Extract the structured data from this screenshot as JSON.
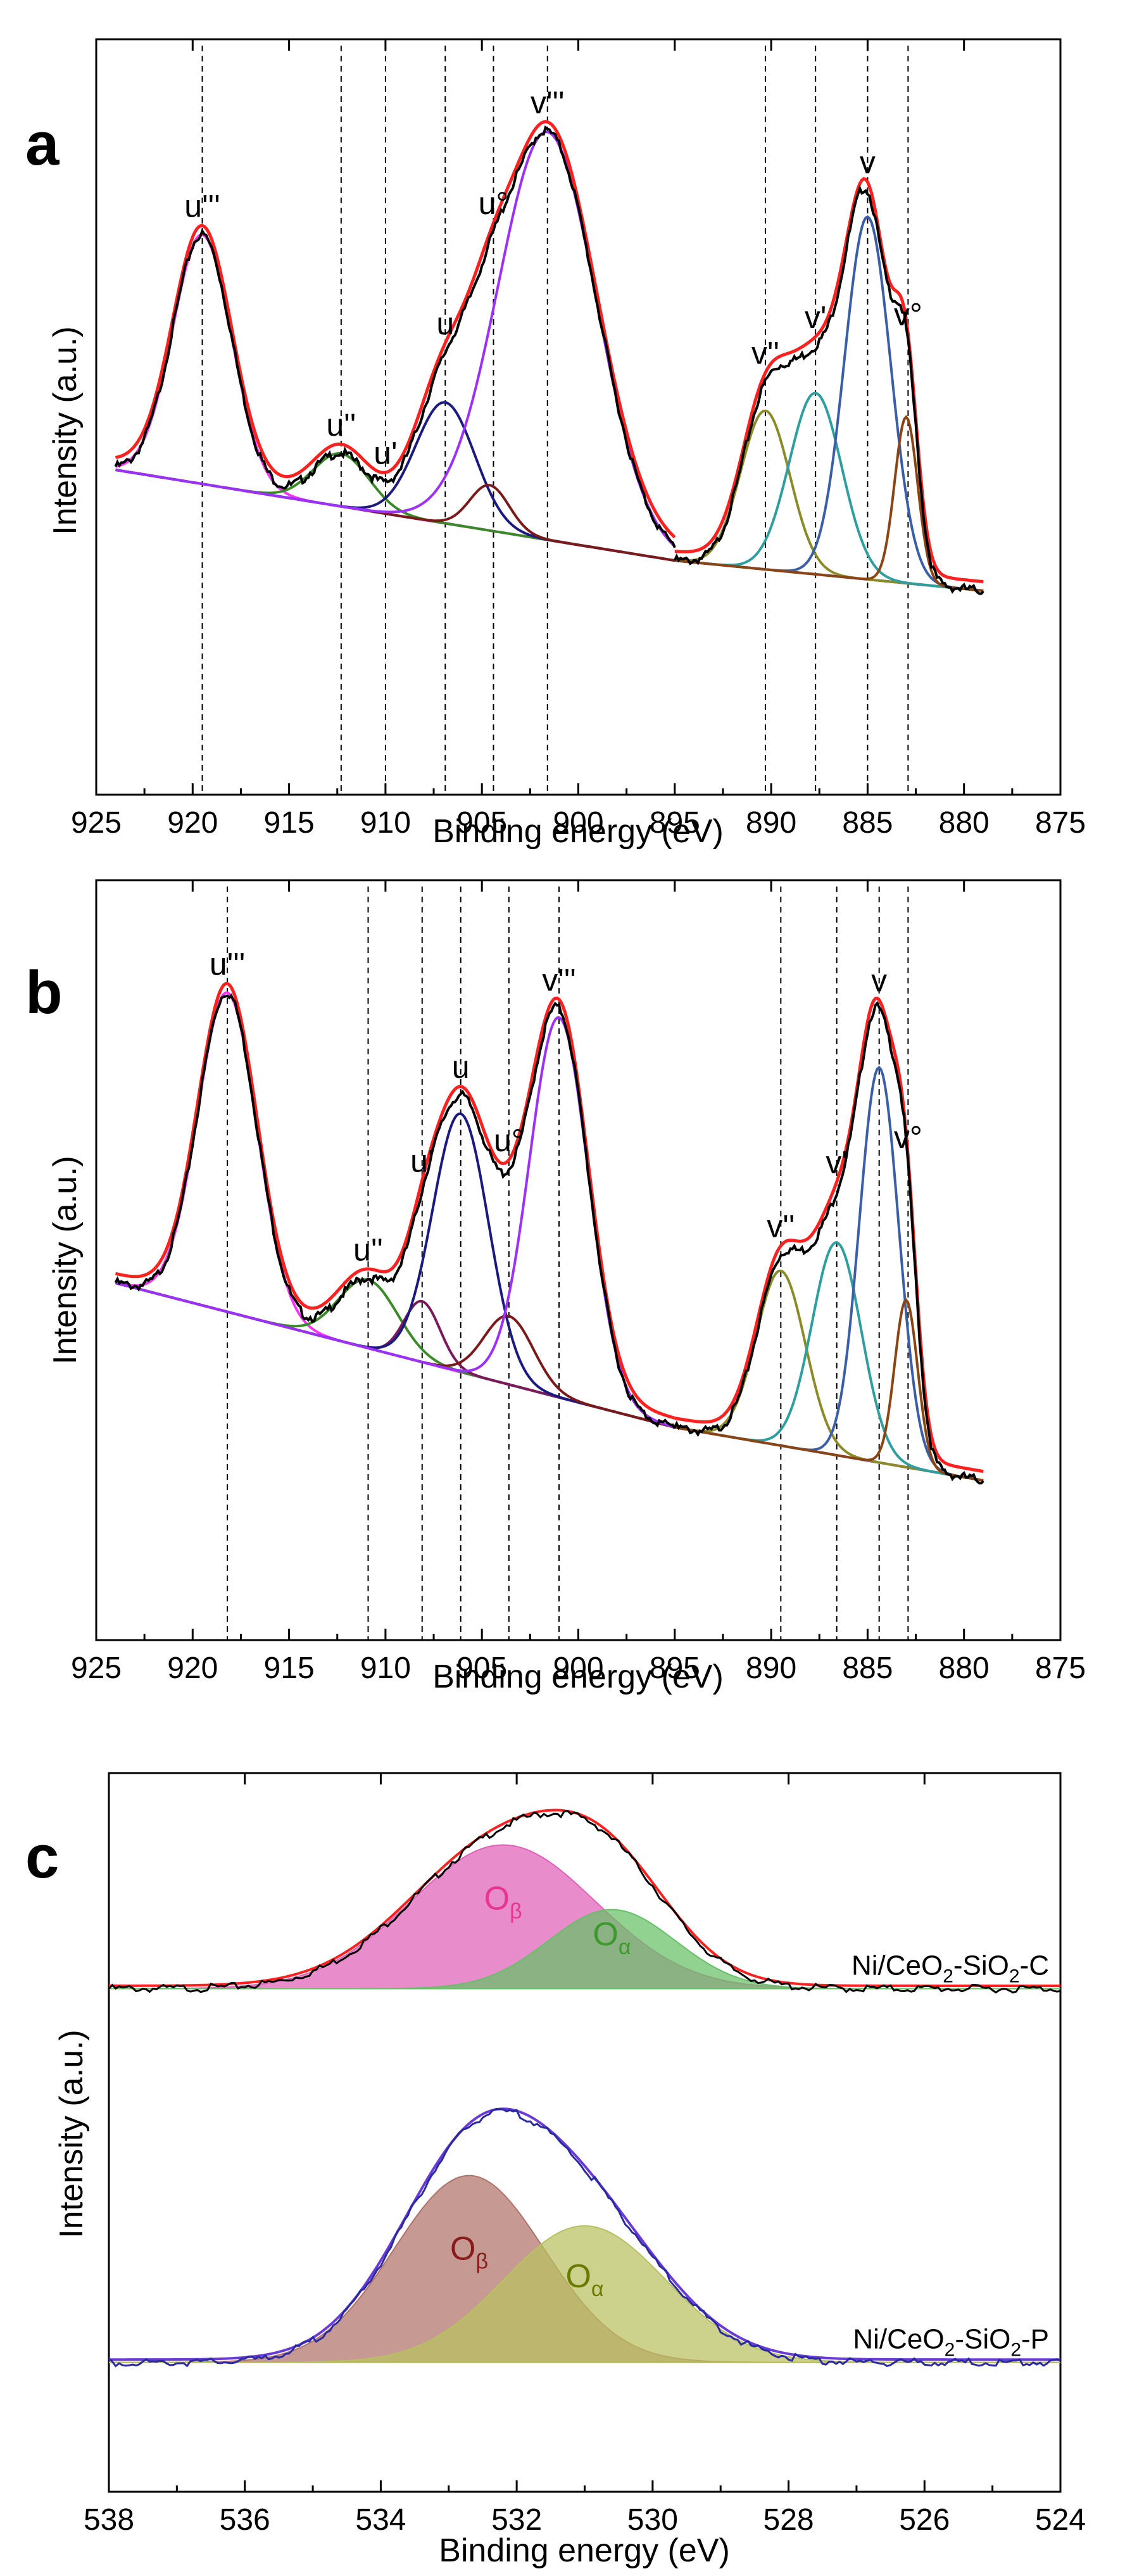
{
  "chart_data": [
    {
      "type": "line",
      "panel_label": "a",
      "xlabel": "Binding energy (eV)",
      "ylabel": "Intensity (a.u.)",
      "xlim": [
        925,
        875
      ],
      "xticks": [
        "925",
        "920",
        "915",
        "910",
        "905",
        "900",
        "895",
        "890",
        "885",
        "880",
        "875"
      ],
      "ylim": [
        0,
        1
      ],
      "y_ticks_shown": false,
      "grid": false,
      "legend": "none",
      "split_at": 895,
      "background": {
        "left": [
          [
            924,
            0.43
          ],
          [
            895,
            0.31
          ]
        ],
        "right": [
          [
            895,
            0.31
          ],
          [
            879,
            0.27
          ]
        ]
      },
      "peak_labels": [
        {
          "label": "u'''",
          "x": 919.5
        },
        {
          "label": "u''",
          "x": 912.3
        },
        {
          "label": "u'",
          "x": 910.0
        },
        {
          "label": "u",
          "x": 906.9
        },
        {
          "label": "u°",
          "x": 904.4
        },
        {
          "label": "v'''",
          "x": 901.6
        },
        {
          "label": "v''",
          "x": 890.3
        },
        {
          "label": "v'",
          "x": 887.7
        },
        {
          "label": "v",
          "x": 885.0
        },
        {
          "label": "v°",
          "x": 882.9
        }
      ],
      "series": [
        {
          "role": "component",
          "color": "#ff33ff",
          "center": 919.5,
          "height": 0.33,
          "fwhm": 3.6,
          "segment": "left"
        },
        {
          "role": "component",
          "color": "#3a8a28",
          "center": 912.3,
          "height": 0.07,
          "fwhm": 3.4,
          "segment": "left"
        },
        {
          "role": "component",
          "color": "#1a1a80",
          "center": 906.9,
          "height": 0.16,
          "fwhm": 3.6,
          "segment": "left"
        },
        {
          "role": "component",
          "color": "#7a1a1a",
          "center": 904.6,
          "height": 0.06,
          "fwhm": 2.4,
          "segment": "left"
        },
        {
          "role": "component",
          "color": "#9b30ff",
          "center": 901.6,
          "height": 0.54,
          "fwhm": 6.0,
          "segment": "left"
        },
        {
          "role": "component",
          "color": "#8b8b2a",
          "center": 890.3,
          "height": 0.21,
          "fwhm": 3.0,
          "segment": "right"
        },
        {
          "role": "component",
          "color": "#2f9e9e",
          "center": 887.7,
          "height": 0.24,
          "fwhm": 3.2,
          "segment": "right"
        },
        {
          "role": "component",
          "color": "#3a5fa8",
          "center": 885.0,
          "height": 0.48,
          "fwhm": 2.8,
          "segment": "right"
        },
        {
          "role": "component",
          "color": "#8b4513",
          "center": 883.0,
          "height": 0.22,
          "fwhm": 1.4,
          "segment": "right"
        },
        {
          "role": "fit",
          "color": "#ff2020"
        },
        {
          "role": "raw",
          "color": "#000000"
        }
      ]
    },
    {
      "type": "line",
      "panel_label": "b",
      "xlabel": "Binding energy (eV)",
      "ylabel": "Intensity (a.u.)",
      "xlim": [
        925,
        875
      ],
      "xticks": [
        "925",
        "920",
        "915",
        "910",
        "905",
        "900",
        "895",
        "890",
        "885",
        "880",
        "875"
      ],
      "ylim": [
        0,
        1
      ],
      "y_ticks_shown": false,
      "grid": false,
      "legend": "none",
      "split_at": 895,
      "background": {
        "left": [
          [
            924,
            0.47
          ],
          [
            895,
            0.28
          ]
        ],
        "right": [
          [
            895,
            0.28
          ],
          [
            879,
            0.21
          ]
        ]
      },
      "peak_labels": [
        {
          "label": "u'''",
          "x": 918.2
        },
        {
          "label": "u''",
          "x": 910.9
        },
        {
          "label": "u'",
          "x": 908.1
        },
        {
          "label": "u",
          "x": 906.1
        },
        {
          "label": "u°",
          "x": 903.6
        },
        {
          "label": "v'''",
          "x": 901.0
        },
        {
          "label": "v''",
          "x": 889.5
        },
        {
          "label": "v'",
          "x": 886.6
        },
        {
          "label": "v",
          "x": 884.4
        },
        {
          "label": "v°",
          "x": 882.9
        }
      ],
      "series": [
        {
          "role": "component",
          "color": "#ff33ff",
          "center": 918.2,
          "height": 0.42,
          "fwhm": 3.6,
          "segment": "left"
        },
        {
          "role": "component",
          "color": "#3a8a28",
          "center": 910.9,
          "height": 0.09,
          "fwhm": 3.6,
          "segment": "left"
        },
        {
          "role": "component",
          "color": "#7a1a5a",
          "center": 908.1,
          "height": 0.08,
          "fwhm": 2.2,
          "segment": "left"
        },
        {
          "role": "component",
          "color": "#1a1a80",
          "center": 906.1,
          "height": 0.34,
          "fwhm": 3.4,
          "segment": "left"
        },
        {
          "role": "component",
          "color": "#7a1a1a",
          "center": 903.6,
          "height": 0.09,
          "fwhm": 3.0,
          "segment": "left"
        },
        {
          "role": "component",
          "color": "#9b30ff",
          "center": 901.0,
          "height": 0.5,
          "fwhm": 3.6,
          "segment": "left"
        },
        {
          "role": "component",
          "color": "#8b8b2a",
          "center": 889.5,
          "height": 0.23,
          "fwhm": 3.0,
          "segment": "right"
        },
        {
          "role": "component",
          "color": "#2f9e9e",
          "center": 886.6,
          "height": 0.28,
          "fwhm": 3.0,
          "segment": "right"
        },
        {
          "role": "component",
          "color": "#3a5fa8",
          "center": 884.4,
          "height": 0.52,
          "fwhm": 2.4,
          "segment": "right"
        },
        {
          "role": "component",
          "color": "#8b4513",
          "center": 883.0,
          "height": 0.22,
          "fwhm": 1.4,
          "segment": "right"
        },
        {
          "role": "fit",
          "color": "#ff2020"
        },
        {
          "role": "raw",
          "color": "#000000"
        }
      ]
    },
    {
      "type": "area",
      "panel_label": "c",
      "xlabel": "Binding energy (eV)",
      "ylabel": "Intensity (a.u.)",
      "xlim": [
        538,
        524
      ],
      "xticks": [
        "538",
        "536",
        "534",
        "532",
        "530",
        "528",
        "526",
        "524"
      ],
      "ylim": [
        0,
        1
      ],
      "y_ticks_shown": false,
      "grid": false,
      "legend": "none",
      "samples": [
        {
          "name_prefix": "Ni/CeO",
          "name_sub": "2",
          "name_mid": "-SiO",
          "name_sub2": "2",
          "name_suffix": "-C",
          "baseline": 0.7,
          "fit_color": "#ff2020",
          "raw_color": "#000000",
          "components": [
            {
              "label": "O",
              "sub": "β",
              "center": 532.2,
              "height": 0.2,
              "fwhm": 3.2,
              "fill": "#e060b8",
              "label_color": "#e8358f"
            },
            {
              "label": "O",
              "sub": "α",
              "center": 530.6,
              "height": 0.11,
              "fwhm": 2.2,
              "fill": "#66c066",
              "label_color": "#3c9a2c"
            }
          ]
        },
        {
          "name_prefix": "Ni/CeO",
          "name_sub": "2",
          "name_mid": "-SiO",
          "name_sub2": "2",
          "name_suffix": "-P",
          "baseline": 0.18,
          "fit_color": "#6a3bd6",
          "raw_color": "#2a2aa0",
          "components": [
            {
              "label": "O",
              "sub": "β",
              "center": 532.7,
              "height": 0.26,
              "fwhm": 2.6,
              "fill": "#b0726a",
              "label_color": "#8b1a1a"
            },
            {
              "label": "O",
              "sub": "α",
              "center": 531.0,
              "height": 0.19,
              "fwhm": 2.8,
              "fill": "#b8c060",
              "label_color": "#6b7a00"
            }
          ]
        }
      ]
    }
  ]
}
